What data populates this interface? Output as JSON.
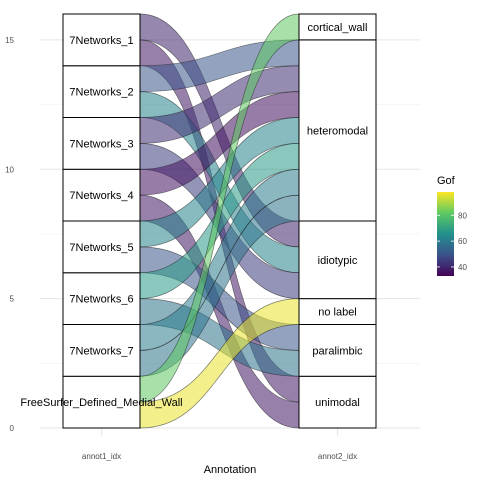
{
  "chart_data": {
    "type": "alluvial",
    "title": "",
    "xlabel": "Annotation",
    "ylabel": "",
    "ylim": [
      0,
      16
    ],
    "yticks": [
      0,
      5,
      10,
      15
    ],
    "axes": [
      "annot1_idx",
      "annot2_idx"
    ],
    "legend": {
      "title": "Gof",
      "position": "right",
      "range": [
        33,
        98
      ],
      "ticks": [
        40,
        60,
        80
      ],
      "colors": [
        "#440154",
        "#3b528b",
        "#21908d",
        "#5dc963",
        "#fde725"
      ]
    },
    "left_strata": [
      {
        "label": "FreeSurfer_Defined_Medial_Wall",
        "size": 2
      },
      {
        "label": "7Networks_7",
        "size": 2
      },
      {
        "label": "7Networks_6",
        "size": 2
      },
      {
        "label": "7Networks_5",
        "size": 2
      },
      {
        "label": "7Networks_4",
        "size": 2
      },
      {
        "label": "7Networks_3",
        "size": 2
      },
      {
        "label": "7Networks_2",
        "size": 2
      },
      {
        "label": "7Networks_1",
        "size": 2
      }
    ],
    "right_strata": [
      {
        "label": "unimodal",
        "size": 2
      },
      {
        "label": "paralimbic",
        "size": 2
      },
      {
        "label": "no label",
        "size": 1
      },
      {
        "label": "idiotypic",
        "size": 3
      },
      {
        "label": "heteromodal",
        "size": 7
      },
      {
        "label": "cortical_wall",
        "size": 1
      }
    ],
    "flows": [
      {
        "from": "7Networks_1",
        "to": "unimodal",
        "gof": 38
      },
      {
        "from": "7Networks_1",
        "to": "idiotypic",
        "gof": 40
      },
      {
        "from": "7Networks_2",
        "to": "idiotypic",
        "gof": 62
      },
      {
        "from": "7Networks_2",
        "to": "heteromodal",
        "gof": 50
      },
      {
        "from": "7Networks_3",
        "to": "idiotypic",
        "gof": 45
      },
      {
        "from": "7Networks_3",
        "to": "heteromodal",
        "gof": 42
      },
      {
        "from": "7Networks_4",
        "to": "unimodal",
        "gof": 38
      },
      {
        "from": "7Networks_4",
        "to": "heteromodal",
        "gof": 36
      },
      {
        "from": "7Networks_5",
        "to": "paralimbic",
        "gof": 50
      },
      {
        "from": "7Networks_5",
        "to": "heteromodal",
        "gof": 62
      },
      {
        "from": "7Networks_6",
        "to": "paralimbic",
        "gof": 58
      },
      {
        "from": "7Networks_6",
        "to": "heteromodal",
        "gof": 68
      },
      {
        "from": "7Networks_7",
        "to": "heteromodal",
        "gof": 58
      },
      {
        "from": "7Networks_7",
        "to": "heteromodal",
        "gof": 60
      },
      {
        "from": "FreeSurfer_Defined_Medial_Wall",
        "to": "no label",
        "gof": 96
      },
      {
        "from": "FreeSurfer_Defined_Medial_Wall",
        "to": "cortical_wall",
        "gof": 82
      }
    ]
  }
}
